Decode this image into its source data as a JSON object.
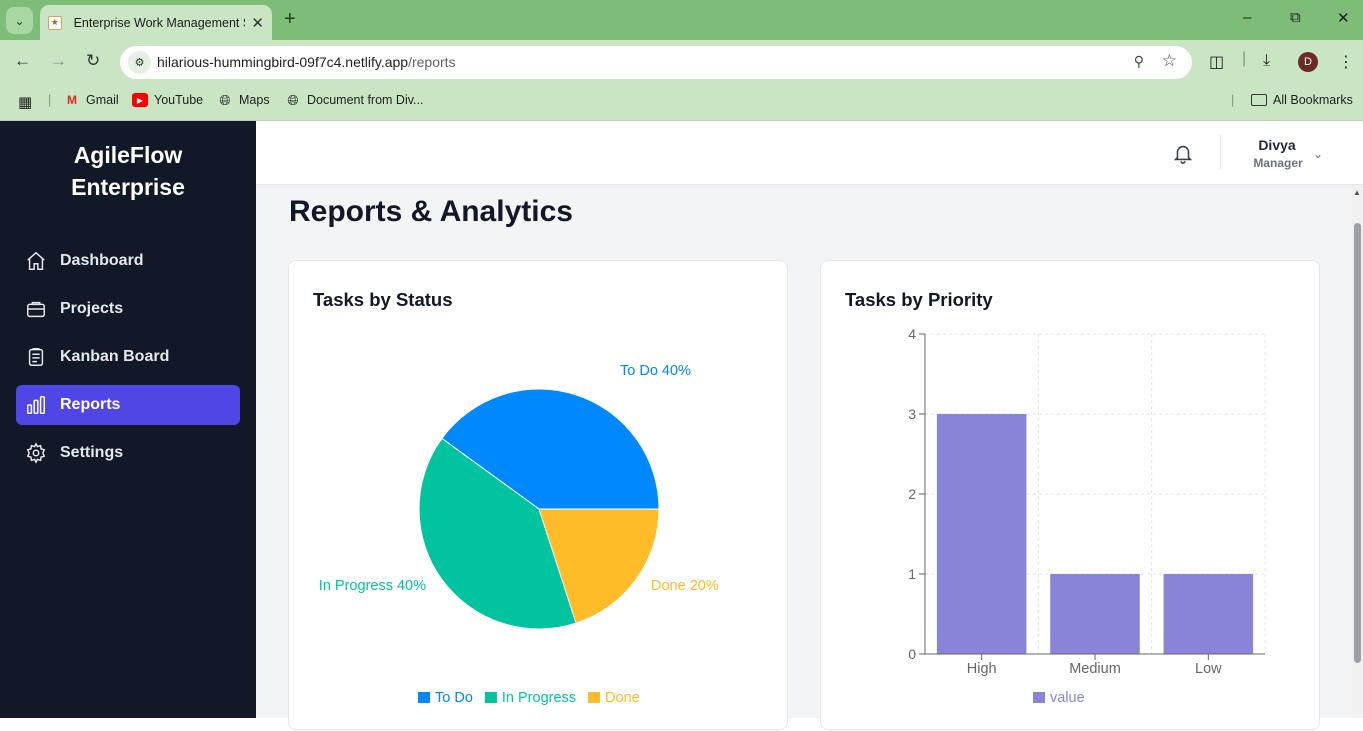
{
  "browser": {
    "tab_title": "Enterprise Work Management S",
    "url_host": "hilarious-hummingbird-09f7c4.netlify.app",
    "url_path": "/reports",
    "profile_initial": "D",
    "bookmarks": [
      {
        "label": "Gmail",
        "icon": "gmail-icon"
      },
      {
        "label": "YouTube",
        "icon": "youtube-icon"
      },
      {
        "label": "Maps",
        "icon": "globe-icon"
      },
      {
        "label": "Document from Div...",
        "icon": "globe-icon"
      }
    ],
    "all_bookmarks": "All Bookmarks"
  },
  "app": {
    "brand_line1": "AgileFlow",
    "brand_line2": "Enterprise",
    "nav": [
      {
        "label": "Dashboard",
        "icon": "home-icon",
        "active": false
      },
      {
        "label": "Projects",
        "icon": "briefcase-icon",
        "active": false
      },
      {
        "label": "Kanban Board",
        "icon": "clipboard-icon",
        "active": false
      },
      {
        "label": "Reports",
        "icon": "bar-chart-icon",
        "active": true
      },
      {
        "label": "Settings",
        "icon": "gear-icon",
        "active": false
      }
    ],
    "user": {
      "name": "Divya",
      "role": "Manager"
    },
    "accent": "#4f46e5"
  },
  "page": {
    "title": "Reports & Analytics"
  },
  "chart_data": [
    {
      "type": "pie",
      "title": "Tasks by Status",
      "slices": [
        {
          "label": "To Do",
          "percent": 40,
          "color": "#0088fe",
          "slice_label": "To Do 40%"
        },
        {
          "label": "In Progress",
          "percent": 40,
          "color": "#00c49f",
          "slice_label": "In Progress 40%"
        },
        {
          "label": "Done",
          "percent": 20,
          "color": "#ffbb28",
          "slice_label": "Done 20%"
        }
      ],
      "legend": "bottom"
    },
    {
      "type": "bar",
      "title": "Tasks by Priority",
      "categories": [
        "High",
        "Medium",
        "Low"
      ],
      "series": [
        {
          "name": "value",
          "values": [
            3,
            1,
            1
          ],
          "color": "#8884d8"
        }
      ],
      "ylim": [
        0,
        4
      ],
      "yticks": [
        "0",
        "1",
        "2",
        "3",
        "4"
      ],
      "grid": true,
      "legend": "bottom"
    }
  ]
}
